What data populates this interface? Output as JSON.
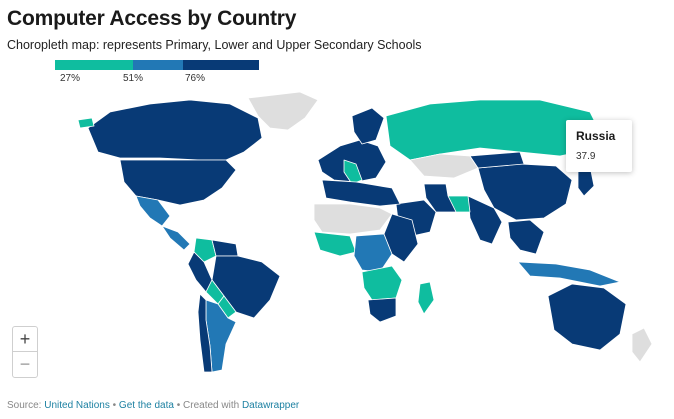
{
  "title": "Computer Access by Country",
  "subtitle": "Choropleth map: represents Primary, Lower and Upper Secondary Schools",
  "legend": {
    "colors": [
      "#0fbd9f",
      "#2278b5",
      "#083a76"
    ],
    "labels": [
      "27%",
      "51%",
      "76%"
    ]
  },
  "colors": {
    "no_data": "#dedede",
    "border": "#ffffff"
  },
  "tooltip": {
    "country": "Russia",
    "value": "37.9"
  },
  "zoom": {
    "in_label": "+",
    "out_label": "−"
  },
  "footer": {
    "source_prefix": "Source:",
    "source_link": "United Nations",
    "sep1": "•",
    "data_link": "Get the data",
    "sep2": "• Created with",
    "tool_link": "Datawrapper"
  },
  "regions": [
    {
      "id": "greenland",
      "level": "none"
    },
    {
      "id": "canada",
      "level": "high"
    },
    {
      "id": "usa",
      "level": "high"
    },
    {
      "id": "mexico",
      "level": "mid"
    },
    {
      "id": "central-america",
      "level": "mid"
    },
    {
      "id": "colombia",
      "level": "low"
    },
    {
      "id": "venezuela",
      "level": "high"
    },
    {
      "id": "brazil",
      "level": "high"
    },
    {
      "id": "peru",
      "level": "high"
    },
    {
      "id": "bolivia",
      "level": "low"
    },
    {
      "id": "paraguay",
      "level": "low"
    },
    {
      "id": "argentina",
      "level": "mid"
    },
    {
      "id": "chile",
      "level": "high"
    },
    {
      "id": "iceland",
      "level": "low"
    },
    {
      "id": "western-europe",
      "level": "high"
    },
    {
      "id": "italy",
      "level": "low"
    },
    {
      "id": "scandinavia",
      "level": "high"
    },
    {
      "id": "russia",
      "level": "low"
    },
    {
      "id": "kazakhstan",
      "level": "none"
    },
    {
      "id": "china",
      "level": "high"
    },
    {
      "id": "mongolia",
      "level": "high"
    },
    {
      "id": "india",
      "level": "high"
    },
    {
      "id": "pakistan",
      "level": "low"
    },
    {
      "id": "iran",
      "level": "high"
    },
    {
      "id": "arabia",
      "level": "high"
    },
    {
      "id": "southeast-asia",
      "level": "high"
    },
    {
      "id": "indonesia",
      "level": "mid"
    },
    {
      "id": "japan",
      "level": "high"
    },
    {
      "id": "australia",
      "level": "high"
    },
    {
      "id": "new-zealand",
      "level": "none"
    },
    {
      "id": "north-africa",
      "level": "high"
    },
    {
      "id": "sahara",
      "level": "none"
    },
    {
      "id": "west-africa",
      "level": "low"
    },
    {
      "id": "central-africa",
      "level": "mid"
    },
    {
      "id": "east-africa",
      "level": "high"
    },
    {
      "id": "southern-africa",
      "level": "low"
    },
    {
      "id": "south-africa",
      "level": "high"
    },
    {
      "id": "madagascar",
      "level": "low"
    }
  ]
}
